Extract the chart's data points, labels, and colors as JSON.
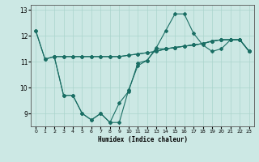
{
  "xlabel": "Humidex (Indice chaleur)",
  "bg_color": "#cce8e4",
  "line_color": "#1a6e64",
  "grid_color": "#aad4cc",
  "xlim": [
    -0.5,
    23.5
  ],
  "ylim": [
    8.5,
    13.2
  ],
  "yticks": [
    9,
    10,
    11,
    12,
    13
  ],
  "xticks": [
    0,
    1,
    2,
    3,
    4,
    5,
    6,
    7,
    8,
    9,
    10,
    11,
    12,
    13,
    14,
    15,
    16,
    17,
    18,
    19,
    20,
    21,
    22,
    23
  ],
  "series1_x": [
    0,
    1,
    2,
    3,
    4,
    5,
    6,
    7,
    8,
    9,
    10,
    11,
    12,
    13,
    14,
    15,
    16,
    17,
    18,
    19,
    20,
    21,
    22,
    23
  ],
  "series1_y": [
    12.2,
    11.1,
    11.2,
    11.2,
    11.2,
    11.2,
    11.2,
    11.2,
    11.2,
    11.2,
    11.25,
    11.3,
    11.35,
    11.4,
    11.5,
    11.55,
    11.6,
    11.65,
    11.7,
    11.8,
    11.85,
    11.85,
    11.85,
    11.4
  ],
  "series2_x": [
    0,
    1,
    2,
    3,
    4,
    5,
    6,
    7,
    8,
    9,
    10,
    11,
    12,
    13,
    14,
    15,
    16,
    17,
    18,
    19,
    20,
    21,
    22,
    23
  ],
  "series2_y": [
    12.2,
    11.1,
    11.2,
    9.7,
    9.7,
    9.0,
    8.75,
    9.0,
    8.65,
    9.4,
    9.85,
    10.95,
    11.05,
    11.55,
    12.2,
    12.85,
    12.85,
    12.1,
    11.65,
    11.4,
    11.5,
    11.85,
    11.85,
    11.4
  ],
  "series3_x": [
    2,
    3,
    4,
    5,
    6,
    7,
    8,
    9,
    10,
    11,
    12,
    13,
    14,
    15,
    16,
    17,
    18,
    19,
    20,
    21,
    22,
    23
  ],
  "series3_y": [
    11.2,
    9.7,
    9.7,
    9.0,
    8.75,
    9.0,
    8.65,
    8.65,
    9.9,
    10.85,
    11.05,
    11.5,
    11.5,
    11.55,
    11.6,
    11.65,
    11.7,
    11.8,
    11.85,
    11.85,
    11.85,
    11.4
  ],
  "series4_x": [
    2,
    3,
    4,
    5,
    6,
    7,
    8,
    9,
    10,
    11,
    12,
    13,
    14,
    15,
    16,
    17,
    18,
    19,
    20,
    21,
    22,
    23
  ],
  "series4_y": [
    11.2,
    11.2,
    11.2,
    11.2,
    11.2,
    11.2,
    11.2,
    11.2,
    11.25,
    11.3,
    11.35,
    11.4,
    11.5,
    11.55,
    11.6,
    11.65,
    11.7,
    11.8,
    11.85,
    11.85,
    11.85,
    11.4
  ]
}
